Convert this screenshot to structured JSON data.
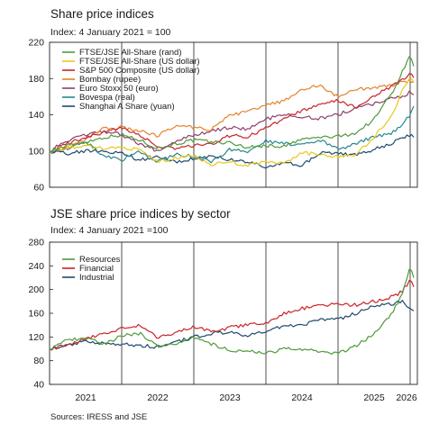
{
  "titles": {
    "top": "Share price indices",
    "top_subtitle": "Index: 4 January 2021 = 100",
    "bottom": "JSE share price indices by sector",
    "bottom_subtitle": "Index: 4 January 2021 =100"
  },
  "source": "Sources: IRESS and JSE",
  "chart_data": [
    {
      "type": "line",
      "title": "Share price indices",
      "subtitle": "Index: 4 January 2021 = 100",
      "xlim": [
        2021.0,
        2026.1
      ],
      "ylim": [
        60,
        220
      ],
      "yticks": [
        60,
        100,
        140,
        180,
        220
      ],
      "year_dividers": [
        2021.0,
        2022.0,
        2023.0,
        2024.0,
        2025.0,
        2026.0
      ],
      "legend_position": "top-left",
      "grid": false,
      "series": [
        {
          "name": "FTSE/JSE All-Share (rand)",
          "color": "#4e9a3a",
          "x": [
            2021.0,
            2021.25,
            2021.5,
            2021.75,
            2022.0,
            2022.25,
            2022.5,
            2022.75,
            2023.0,
            2023.25,
            2023.5,
            2023.75,
            2024.0,
            2024.25,
            2024.5,
            2024.75,
            2025.0,
            2025.25,
            2025.5,
            2025.75,
            2025.88,
            2026.0,
            2026.05
          ],
          "y": [
            100,
            106,
            110,
            115,
            118,
            112,
            103,
            108,
            112,
            110,
            109,
            104,
            106,
            105,
            113,
            115,
            116,
            120,
            135,
            165,
            185,
            208,
            192
          ]
        },
        {
          "name": "FTSE/JSE All-Share (US dollar)",
          "color": "#e8c81a",
          "x": [
            2021.0,
            2021.25,
            2021.5,
            2021.75,
            2022.0,
            2022.25,
            2022.5,
            2022.75,
            2023.0,
            2023.25,
            2023.5,
            2023.75,
            2024.0,
            2024.25,
            2024.5,
            2024.75,
            2025.0,
            2025.25,
            2025.5,
            2025.75,
            2025.88,
            2026.0,
            2026.05
          ],
          "y": [
            100,
            104,
            105,
            103,
            104,
            101,
            88,
            92,
            95,
            85,
            88,
            84,
            88,
            86,
            98,
            96,
            94,
            96,
            115,
            140,
            165,
            182,
            175
          ]
        },
        {
          "name": "S&P 500 Composite (US dollar)",
          "color": "#c8242b",
          "x": [
            2021.0,
            2021.25,
            2021.5,
            2021.75,
            2022.0,
            2022.25,
            2022.5,
            2022.75,
            2023.0,
            2023.25,
            2023.5,
            2023.75,
            2024.0,
            2024.25,
            2024.5,
            2024.75,
            2025.0,
            2025.25,
            2025.5,
            2025.75,
            2025.88,
            2026.0,
            2026.05
          ],
          "y": [
            100,
            108,
            115,
            120,
            126,
            118,
            104,
            103,
            106,
            108,
            117,
            116,
            125,
            136,
            144,
            151,
            156,
            148,
            160,
            172,
            178,
            186,
            180
          ]
        },
        {
          "name": "Bombay (rupee)",
          "color": "#e3832c",
          "x": [
            2021.0,
            2021.25,
            2021.5,
            2021.75,
            2022.0,
            2022.25,
            2022.5,
            2022.75,
            2023.0,
            2023.25,
            2023.5,
            2023.75,
            2024.0,
            2024.25,
            2024.5,
            2024.75,
            2025.0,
            2025.25,
            2025.5,
            2025.75,
            2025.88,
            2026.0,
            2026.05
          ],
          "y": [
            100,
            103,
            113,
            125,
            126,
            122,
            117,
            128,
            126,
            124,
            140,
            143,
            151,
            155,
            168,
            172,
            160,
            168,
            170,
            172,
            176,
            178,
            176
          ]
        },
        {
          "name": "Euro Stoxx 50 (euro)",
          "color": "#8c3f6a",
          "x": [
            2021.0,
            2021.25,
            2021.5,
            2021.75,
            2022.0,
            2022.25,
            2022.5,
            2022.75,
            2023.0,
            2023.25,
            2023.5,
            2023.75,
            2024.0,
            2024.25,
            2024.5,
            2024.75,
            2025.0,
            2025.25,
            2025.5,
            2025.75,
            2025.88,
            2026.0,
            2026.05
          ],
          "y": [
            100,
            112,
            118,
            122,
            118,
            108,
            100,
            110,
            118,
            122,
            126,
            124,
            135,
            140,
            138,
            136,
            140,
            148,
            152,
            158,
            160,
            165,
            162
          ]
        },
        {
          "name": "Bovespa (real)",
          "color": "#27878e",
          "x": [
            2021.0,
            2021.25,
            2021.5,
            2021.75,
            2022.0,
            2022.25,
            2022.5,
            2022.75,
            2023.0,
            2023.25,
            2023.5,
            2023.75,
            2024.0,
            2024.25,
            2024.5,
            2024.75,
            2025.0,
            2025.25,
            2025.5,
            2025.75,
            2025.88,
            2026.0,
            2026.05
          ],
          "y": [
            100,
            103,
            110,
            95,
            90,
            100,
            88,
            96,
            94,
            88,
            102,
            98,
            111,
            108,
            107,
            112,
            102,
            108,
            116,
            120,
            128,
            140,
            150
          ]
        },
        {
          "name": "Shanghai A Share (yuan)",
          "color": "#1d4a6e",
          "x": [
            2021.0,
            2021.25,
            2021.5,
            2021.75,
            2022.0,
            2022.25,
            2022.5,
            2022.75,
            2023.0,
            2023.25,
            2023.5,
            2023.75,
            2024.0,
            2024.25,
            2024.5,
            2024.75,
            2025.0,
            2025.25,
            2025.5,
            2025.75,
            2025.88,
            2026.0,
            2026.05
          ],
          "y": [
            100,
            97,
            100,
            100,
            98,
            90,
            94,
            88,
            92,
            94,
            90,
            88,
            82,
            88,
            84,
            98,
            97,
            96,
            102,
            108,
            115,
            117,
            116
          ]
        }
      ]
    },
    {
      "type": "line",
      "title": "JSE share price indices by sector",
      "subtitle": "Index: 4 January 2021 =100",
      "xlim": [
        2021.0,
        2026.1
      ],
      "ylim": [
        40,
        280
      ],
      "yticks": [
        40,
        80,
        120,
        160,
        200,
        240,
        280
      ],
      "xticklabels": [
        "2021",
        "2022",
        "2023",
        "2024",
        "2025",
        "2026"
      ],
      "year_dividers": [
        2021.0,
        2022.0,
        2023.0,
        2024.0,
        2025.0,
        2026.0
      ],
      "legend_position": "top-left",
      "grid": false,
      "series": [
        {
          "name": "Resources",
          "color": "#4e9a3a",
          "x": [
            2021.0,
            2021.25,
            2021.5,
            2021.75,
            2022.0,
            2022.25,
            2022.5,
            2022.75,
            2023.0,
            2023.25,
            2023.5,
            2023.75,
            2024.0,
            2024.25,
            2024.5,
            2024.75,
            2025.0,
            2025.25,
            2025.5,
            2025.75,
            2025.88,
            2026.0,
            2026.05
          ],
          "y": [
            100,
            115,
            118,
            108,
            122,
            126,
            105,
            108,
            120,
            108,
            98,
            96,
            92,
            100,
            98,
            96,
            92,
            105,
            125,
            160,
            190,
            238,
            220
          ]
        },
        {
          "name": "Financial",
          "color": "#c8242b",
          "x": [
            2021.0,
            2021.25,
            2021.5,
            2021.75,
            2022.0,
            2022.25,
            2022.5,
            2022.75,
            2023.0,
            2023.25,
            2023.5,
            2023.75,
            2024.0,
            2024.25,
            2024.5,
            2024.75,
            2025.0,
            2025.25,
            2025.5,
            2025.75,
            2025.88,
            2026.0,
            2026.05
          ],
          "y": [
            100,
            106,
            118,
            126,
            134,
            140,
            118,
            128,
            138,
            128,
            136,
            140,
            143,
            160,
            168,
            174,
            175,
            174,
            180,
            188,
            196,
            215,
            205
          ]
        },
        {
          "name": "Industrial",
          "color": "#1d4a6e",
          "x": [
            2021.0,
            2021.25,
            2021.5,
            2021.75,
            2022.0,
            2022.25,
            2022.5,
            2022.75,
            2023.0,
            2023.25,
            2023.5,
            2023.75,
            2024.0,
            2024.25,
            2024.5,
            2024.75,
            2025.0,
            2025.25,
            2025.5,
            2025.75,
            2025.88,
            2026.0,
            2026.05
          ],
          "y": [
            100,
            106,
            112,
            110,
            108,
            106,
            103,
            112,
            120,
            126,
            128,
            122,
            130,
            138,
            140,
            150,
            150,
            160,
            172,
            176,
            180,
            170,
            165
          ]
        }
      ]
    }
  ]
}
